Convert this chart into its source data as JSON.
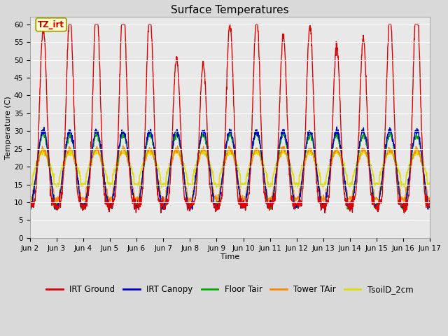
{
  "title": "Surface Temperatures",
  "xlabel": "Time",
  "ylabel": "Temperature (C)",
  "ylim": [
    0,
    62
  ],
  "yticks": [
    0,
    5,
    10,
    15,
    20,
    25,
    30,
    35,
    40,
    45,
    50,
    55,
    60
  ],
  "xtick_labels": [
    "Jun 2",
    "Jun 3",
    "Jun 4",
    "Jun 5",
    "Jun 6",
    "Jun 7",
    "Jun 8",
    "Jun 9",
    "Jun 10",
    "Jun 11",
    "Jun 12",
    "Jun 13",
    "Jun 14",
    "Jun 15",
    "Jun 16",
    "Jun 17"
  ],
  "annotation_text": "TZ_irt",
  "annotation_color": "#cc0000",
  "annotation_bg": "#ffffcc",
  "annotation_border": "#999900",
  "series": {
    "IRT Ground": {
      "color": "#dd0000",
      "lw": 1.0
    },
    "IRT Canopy": {
      "color": "#0000cc",
      "lw": 1.0
    },
    "Floor Tair": {
      "color": "#00aa00",
      "lw": 1.0
    },
    "Tower TAir": {
      "color": "#ff8800",
      "lw": 1.0
    },
    "TsoilD_2cm": {
      "color": "#dddd00",
      "lw": 1.2
    }
  },
  "background_color": "#d9d9d9",
  "plot_bg": "#e8e8e8",
  "grid_color": "#ffffff",
  "title_fontsize": 11,
  "axis_label_fontsize": 8,
  "tick_fontsize": 7.5,
  "legend_fontsize": 8.5
}
